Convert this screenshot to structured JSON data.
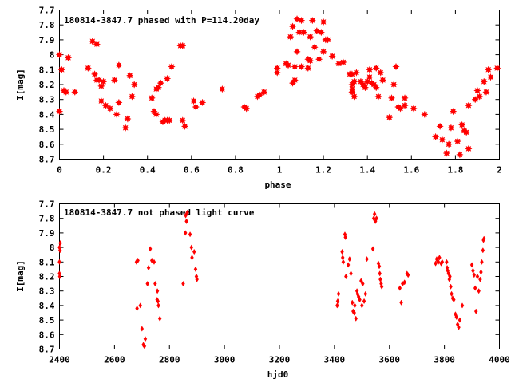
{
  "chart_data": [
    {
      "type": "scatter",
      "title": "180814-3847.7 phased with P=114.20day",
      "xlabel": "phase",
      "ylabel": "I[mag]",
      "xlim": [
        0,
        2
      ],
      "ylim": [
        8.7,
        7.7
      ],
      "y_inverted": true,
      "grid": false,
      "legend": "none",
      "marker": "filled star",
      "color": "#ff0000",
      "x_ticks": [
        0,
        0.2,
        0.4,
        0.6,
        0.8,
        1,
        1.2,
        1.4,
        1.6,
        1.8,
        2
      ],
      "x_tick_labels": [
        "0",
        "0.2",
        "0.4",
        "0.6",
        "0.8",
        "1",
        "1.2",
        "1.4",
        "1.6",
        "1.8",
        "2"
      ],
      "y_ticks": [
        7.7,
        7.8,
        7.9,
        8.0,
        8.1,
        8.2,
        8.3,
        8.4,
        8.5,
        8.6,
        8.7
      ],
      "y_tick_labels": [
        "7.7",
        "7.8",
        "7.9",
        "8",
        "8.1",
        "8.2",
        "8.3",
        "8.4",
        "8.5",
        "8.6",
        "8.7"
      ],
      "points": [
        [
          0.0,
          8.0
        ],
        [
          0.0,
          8.38
        ],
        [
          0.01,
          8.1
        ],
        [
          0.02,
          8.24
        ],
        [
          0.03,
          8.25
        ],
        [
          0.04,
          8.02
        ],
        [
          0.07,
          8.25
        ],
        [
          0.13,
          8.09
        ],
        [
          0.15,
          7.91
        ],
        [
          0.16,
          8.13
        ],
        [
          0.17,
          8.17
        ],
        [
          0.17,
          7.93
        ],
        [
          0.18,
          8.17
        ],
        [
          0.19,
          8.21
        ],
        [
          0.19,
          8.31
        ],
        [
          0.2,
          8.18
        ],
        [
          0.21,
          8.34
        ],
        [
          0.23,
          8.36
        ],
        [
          0.25,
          8.17
        ],
        [
          0.26,
          8.4
        ],
        [
          0.27,
          8.07
        ],
        [
          0.27,
          8.32
        ],
        [
          0.3,
          8.49
        ],
        [
          0.31,
          8.43
        ],
        [
          0.32,
          8.14
        ],
        [
          0.33,
          8.28
        ],
        [
          0.34,
          8.2
        ],
        [
          0.42,
          8.29
        ],
        [
          0.43,
          8.38
        ],
        [
          0.44,
          8.23
        ],
        [
          0.44,
          8.4
        ],
        [
          0.45,
          8.22
        ],
        [
          0.46,
          8.19
        ],
        [
          0.47,
          8.45
        ],
        [
          0.48,
          8.44
        ],
        [
          0.49,
          8.44
        ],
        [
          0.49,
          8.16
        ],
        [
          0.5,
          8.44
        ],
        [
          0.51,
          8.08
        ],
        [
          0.55,
          7.94
        ],
        [
          0.56,
          7.94
        ],
        [
          0.56,
          8.44
        ],
        [
          0.57,
          8.48
        ],
        [
          0.61,
          8.31
        ],
        [
          0.62,
          8.35
        ],
        [
          0.65,
          8.32
        ],
        [
          0.74,
          8.23
        ],
        [
          0.84,
          8.35
        ],
        [
          0.85,
          8.36
        ],
        [
          0.9,
          8.28
        ],
        [
          0.91,
          8.27
        ],
        [
          0.93,
          8.25
        ],
        [
          0.99,
          8.09
        ],
        [
          0.99,
          8.12
        ],
        [
          1.03,
          8.06
        ],
        [
          1.04,
          8.07
        ],
        [
          1.05,
          7.88
        ],
        [
          1.06,
          8.19
        ],
        [
          1.06,
          7.81
        ],
        [
          1.07,
          8.17
        ],
        [
          1.07,
          8.08
        ],
        [
          1.08,
          7.76
        ],
        [
          1.08,
          7.98
        ],
        [
          1.09,
          7.85
        ],
        [
          1.1,
          8.08
        ],
        [
          1.1,
          7.77
        ],
        [
          1.11,
          7.85
        ],
        [
          1.13,
          8.03
        ],
        [
          1.13,
          8.09
        ],
        [
          1.14,
          7.88
        ],
        [
          1.14,
          8.04
        ],
        [
          1.15,
          7.77
        ],
        [
          1.16,
          7.95
        ],
        [
          1.17,
          7.84
        ],
        [
          1.18,
          8.03
        ],
        [
          1.19,
          7.85
        ],
        [
          1.2,
          7.78
        ],
        [
          1.2,
          7.98
        ],
        [
          1.21,
          7.9
        ],
        [
          1.22,
          7.9
        ],
        [
          1.24,
          8.01
        ],
        [
          1.27,
          8.06
        ],
        [
          1.29,
          8.05
        ],
        [
          1.32,
          8.13
        ],
        [
          1.33,
          8.13
        ],
        [
          1.33,
          8.2
        ],
        [
          1.33,
          8.23
        ],
        [
          1.33,
          8.25
        ],
        [
          1.34,
          8.28
        ],
        [
          1.34,
          8.18
        ],
        [
          1.35,
          8.12
        ],
        [
          1.37,
          8.18
        ],
        [
          1.38,
          8.2
        ],
        [
          1.39,
          8.22
        ],
        [
          1.4,
          8.18
        ],
        [
          1.41,
          8.15
        ],
        [
          1.41,
          8.1
        ],
        [
          1.42,
          8.19
        ],
        [
          1.43,
          8.2
        ],
        [
          1.44,
          8.22
        ],
        [
          1.44,
          8.09
        ],
        [
          1.45,
          8.28
        ],
        [
          1.46,
          8.12
        ],
        [
          1.47,
          8.17
        ],
        [
          1.5,
          8.42
        ],
        [
          1.51,
          8.29
        ],
        [
          1.52,
          8.2
        ],
        [
          1.53,
          8.08
        ],
        [
          1.54,
          8.35
        ],
        [
          1.55,
          8.36
        ],
        [
          1.57,
          8.34
        ],
        [
          1.57,
          8.29
        ],
        [
          1.61,
          8.36
        ],
        [
          1.66,
          8.4
        ],
        [
          1.71,
          8.55
        ],
        [
          1.73,
          8.48
        ],
        [
          1.74,
          8.57
        ],
        [
          1.76,
          8.66
        ],
        [
          1.77,
          8.6
        ],
        [
          1.78,
          8.49
        ],
        [
          1.79,
          8.38
        ],
        [
          1.81,
          8.58
        ],
        [
          1.82,
          8.67
        ],
        [
          1.83,
          8.47
        ],
        [
          1.84,
          8.51
        ],
        [
          1.85,
          8.52
        ],
        [
          1.86,
          8.63
        ],
        [
          1.86,
          8.34
        ],
        [
          1.89,
          8.3
        ],
        [
          1.9,
          8.24
        ],
        [
          1.91,
          8.28
        ],
        [
          1.93,
          8.18
        ],
        [
          1.94,
          8.25
        ],
        [
          1.95,
          8.1
        ],
        [
          1.96,
          8.15
        ],
        [
          1.99,
          8.09
        ]
      ]
    },
    {
      "type": "scatter",
      "title": "180814-3847.7 not phased light curve",
      "xlabel": "hjd0",
      "ylabel": "I[mag]",
      "xlim": [
        2400,
        4000
      ],
      "ylim": [
        8.7,
        7.7
      ],
      "y_inverted": true,
      "grid": false,
      "legend": "none",
      "marker": "filled diamond",
      "color": "#ff0000",
      "x_ticks": [
        2400,
        2600,
        2800,
        3000,
        3200,
        3400,
        3600,
        3800,
        4000
      ],
      "x_tick_labels": [
        "2400",
        "2600",
        "2800",
        "3000",
        "3200",
        "3400",
        "3600",
        "3800",
        "4000"
      ],
      "y_ticks": [
        7.7,
        7.8,
        7.9,
        8.0,
        8.1,
        8.2,
        8.3,
        8.4,
        8.5,
        8.6,
        8.7
      ],
      "y_tick_labels": [
        "7.7",
        "7.8",
        "7.9",
        "8",
        "8.1",
        "8.2",
        "8.3",
        "8.4",
        "8.5",
        "8.6",
        "8.7"
      ],
      "points": [
        [
          2400,
          8.0
        ],
        [
          2400,
          8.1
        ],
        [
          2400,
          8.18
        ],
        [
          2401,
          8.2
        ],
        [
          2402,
          8.02
        ],
        [
          2403,
          7.97
        ],
        [
          2680,
          8.1
        ],
        [
          2682,
          8.42
        ],
        [
          2685,
          8.09
        ],
        [
          2694,
          8.4
        ],
        [
          2700,
          8.56
        ],
        [
          2705,
          8.67
        ],
        [
          2709,
          8.68
        ],
        [
          2712,
          8.63
        ],
        [
          2720,
          8.25
        ],
        [
          2724,
          8.14
        ],
        [
          2730,
          8.01
        ],
        [
          2736,
          8.09
        ],
        [
          2744,
          8.1
        ],
        [
          2748,
          8.25
        ],
        [
          2755,
          8.36
        ],
        [
          2756,
          8.3
        ],
        [
          2758,
          8.37
        ],
        [
          2760,
          8.4
        ],
        [
          2765,
          8.49
        ],
        [
          2850,
          8.25
        ],
        [
          2858,
          7.9
        ],
        [
          2859,
          7.78
        ],
        [
          2862,
          7.82
        ],
        [
          2865,
          7.76
        ],
        [
          2875,
          7.91
        ],
        [
          2880,
          8.0
        ],
        [
          2882,
          8.07
        ],
        [
          2890,
          8.03
        ],
        [
          2895,
          8.15
        ],
        [
          2898,
          8.2
        ],
        [
          2900,
          8.22
        ],
        [
          3410,
          8.4
        ],
        [
          3412,
          8.37
        ],
        [
          3415,
          8.32
        ],
        [
          3428,
          8.03
        ],
        [
          3430,
          8.07
        ],
        [
          3432,
          8.1
        ],
        [
          3438,
          7.91
        ],
        [
          3440,
          7.93
        ],
        [
          3442,
          8.2
        ],
        [
          3450,
          8.12
        ],
        [
          3455,
          8.08
        ],
        [
          3460,
          8.18
        ],
        [
          3465,
          8.38
        ],
        [
          3468,
          8.44
        ],
        [
          3472,
          8.45
        ],
        [
          3474,
          8.4
        ],
        [
          3478,
          8.49
        ],
        [
          3482,
          8.3
        ],
        [
          3484,
          8.32
        ],
        [
          3488,
          8.34
        ],
        [
          3492,
          8.36
        ],
        [
          3497,
          8.23
        ],
        [
          3500,
          8.4
        ],
        [
          3503,
          8.25
        ],
        [
          3508,
          8.37
        ],
        [
          3513,
          8.32
        ],
        [
          3518,
          8.08
        ],
        [
          3540,
          8.01
        ],
        [
          3543,
          7.8
        ],
        [
          3546,
          7.77
        ],
        [
          3549,
          7.82
        ],
        [
          3553,
          7.8
        ],
        [
          3560,
          8.11
        ],
        [
          3563,
          8.13
        ],
        [
          3565,
          8.18
        ],
        [
          3567,
          8.22
        ],
        [
          3570,
          8.25
        ],
        [
          3572,
          8.27
        ],
        [
          3638,
          8.28
        ],
        [
          3643,
          8.38
        ],
        [
          3648,
          8.25
        ],
        [
          3655,
          8.24
        ],
        [
          3664,
          8.18
        ],
        [
          3668,
          8.19
        ],
        [
          3768,
          8.11
        ],
        [
          3772,
          8.08
        ],
        [
          3775,
          8.09
        ],
        [
          3778,
          8.1
        ],
        [
          3782,
          8.07
        ],
        [
          3788,
          8.11
        ],
        [
          3792,
          8.1
        ],
        [
          3808,
          8.1
        ],
        [
          3810,
          8.14
        ],
        [
          3812,
          8.16
        ],
        [
          3815,
          8.18
        ],
        [
          3818,
          8.22
        ],
        [
          3820,
          8.2
        ],
        [
          3823,
          8.27
        ],
        [
          3826,
          8.32
        ],
        [
          3830,
          8.35
        ],
        [
          3834,
          8.36
        ],
        [
          3840,
          8.46
        ],
        [
          3844,
          8.48
        ],
        [
          3848,
          8.53
        ],
        [
          3852,
          8.55
        ],
        [
          3856,
          8.5
        ],
        [
          3865,
          8.4
        ],
        [
          3900,
          8.12
        ],
        [
          3904,
          8.16
        ],
        [
          3908,
          8.19
        ],
        [
          3912,
          8.28
        ],
        [
          3915,
          8.44
        ],
        [
          3920,
          8.2
        ],
        [
          3925,
          8.3
        ],
        [
          3930,
          8.22
        ],
        [
          3933,
          8.17
        ],
        [
          3936,
          8.1
        ],
        [
          3940,
          8.02
        ],
        [
          3942,
          7.95
        ],
        [
          3944,
          7.94
        ]
      ]
    }
  ]
}
